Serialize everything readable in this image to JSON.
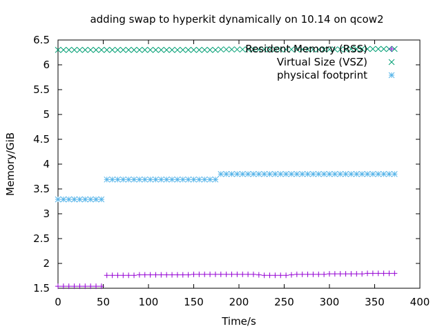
{
  "chart_data": {
    "type": "scatter",
    "title": "adding swap to hyperkit dynamically on 10.14 on qcow2",
    "xlabel": "Time/s",
    "ylabel": "Memory/GiB",
    "xlim": [
      0,
      400
    ],
    "ylim": [
      1.5,
      6.5
    ],
    "xticks": [
      0,
      50,
      100,
      150,
      200,
      250,
      300,
      350,
      400
    ],
    "xtick_labels": [
      "0",
      "50",
      "100",
      "150",
      "200",
      "250",
      "300",
      "350",
      "400"
    ],
    "yticks": [
      1.5,
      2,
      2.5,
      3,
      3.5,
      4,
      4.5,
      5,
      5.5,
      6,
      6.5
    ],
    "ytick_labels": [
      "1.5",
      "2",
      "2.5",
      "3",
      "3.5",
      "4",
      "4.5",
      "5",
      "5.5",
      "6",
      "6.5"
    ],
    "grid": false,
    "legend_position": "top-right",
    "series": [
      {
        "name": "Resident Memory (RSS)",
        "marker": "plus",
        "color": "#9400d3",
        "x": [
          0,
          6,
          12,
          18,
          24,
          30,
          36,
          42,
          48,
          54,
          60,
          66,
          72,
          78,
          84,
          90,
          96,
          102,
          108,
          114,
          120,
          126,
          132,
          138,
          144,
          150,
          156,
          162,
          168,
          174,
          180,
          186,
          192,
          198,
          204,
          210,
          216,
          222,
          228,
          234,
          240,
          246,
          252,
          258,
          264,
          270,
          276,
          282,
          288,
          294,
          300,
          306,
          312,
          318,
          324,
          330,
          336,
          342,
          348,
          354,
          360,
          366,
          372
        ],
        "y": [
          1.54,
          1.54,
          1.54,
          1.54,
          1.54,
          1.54,
          1.54,
          1.54,
          1.54,
          1.76,
          1.76,
          1.76,
          1.76,
          1.76,
          1.76,
          1.77,
          1.77,
          1.77,
          1.77,
          1.77,
          1.77,
          1.77,
          1.77,
          1.77,
          1.77,
          1.78,
          1.78,
          1.78,
          1.78,
          1.78,
          1.78,
          1.78,
          1.78,
          1.78,
          1.78,
          1.78,
          1.78,
          1.77,
          1.76,
          1.76,
          1.76,
          1.76,
          1.76,
          1.77,
          1.78,
          1.78,
          1.78,
          1.78,
          1.78,
          1.78,
          1.79,
          1.79,
          1.79,
          1.79,
          1.79,
          1.79,
          1.79,
          1.8,
          1.8,
          1.8,
          1.8,
          1.8,
          1.8
        ]
      },
      {
        "name": "Virtual Size (VSZ)",
        "marker": "cross",
        "color": "#009e73",
        "x": [
          0,
          6,
          12,
          18,
          24,
          30,
          36,
          42,
          48,
          54,
          60,
          66,
          72,
          78,
          84,
          90,
          96,
          102,
          108,
          114,
          120,
          126,
          132,
          138,
          144,
          150,
          156,
          162,
          168,
          174,
          180,
          186,
          192,
          198,
          204,
          210,
          216,
          222,
          228,
          234,
          240,
          246,
          252,
          258,
          264,
          270,
          276,
          282,
          288,
          294,
          300,
          306,
          312,
          318,
          324,
          330,
          336,
          342,
          348,
          354,
          360,
          366,
          372
        ],
        "y": [
          6.3,
          6.3,
          6.3,
          6.3,
          6.3,
          6.3,
          6.3,
          6.3,
          6.3,
          6.3,
          6.3,
          6.3,
          6.3,
          6.3,
          6.3,
          6.3,
          6.3,
          6.3,
          6.3,
          6.3,
          6.3,
          6.3,
          6.3,
          6.3,
          6.3,
          6.3,
          6.3,
          6.3,
          6.3,
          6.3,
          6.31,
          6.31,
          6.31,
          6.31,
          6.31,
          6.31,
          6.31,
          6.31,
          6.31,
          6.31,
          6.31,
          6.31,
          6.31,
          6.31,
          6.31,
          6.31,
          6.31,
          6.31,
          6.31,
          6.31,
          6.31,
          6.31,
          6.31,
          6.31,
          6.32,
          6.32,
          6.32,
          6.32,
          6.32,
          6.32,
          6.32,
          6.32,
          6.32
        ]
      },
      {
        "name": "physical footprint",
        "marker": "star",
        "color": "#56b4e9",
        "x": [
          0,
          6,
          12,
          18,
          24,
          30,
          36,
          42,
          48,
          54,
          60,
          66,
          72,
          78,
          84,
          90,
          96,
          102,
          108,
          114,
          120,
          126,
          132,
          138,
          144,
          150,
          156,
          162,
          168,
          174,
          180,
          186,
          192,
          198,
          204,
          210,
          216,
          222,
          228,
          234,
          240,
          246,
          252,
          258,
          264,
          270,
          276,
          282,
          288,
          294,
          300,
          306,
          312,
          318,
          324,
          330,
          336,
          342,
          348,
          354,
          360,
          366,
          372
        ],
        "y": [
          3.29,
          3.29,
          3.29,
          3.29,
          3.29,
          3.29,
          3.29,
          3.29,
          3.29,
          3.69,
          3.69,
          3.69,
          3.69,
          3.69,
          3.69,
          3.69,
          3.69,
          3.69,
          3.69,
          3.69,
          3.69,
          3.69,
          3.69,
          3.69,
          3.69,
          3.69,
          3.69,
          3.69,
          3.69,
          3.69,
          3.8,
          3.8,
          3.8,
          3.8,
          3.8,
          3.8,
          3.8,
          3.8,
          3.8,
          3.8,
          3.8,
          3.8,
          3.8,
          3.8,
          3.8,
          3.8,
          3.8,
          3.8,
          3.8,
          3.8,
          3.8,
          3.8,
          3.8,
          3.8,
          3.8,
          3.8,
          3.8,
          3.8,
          3.8,
          3.8,
          3.8,
          3.8,
          3.8
        ]
      }
    ]
  }
}
